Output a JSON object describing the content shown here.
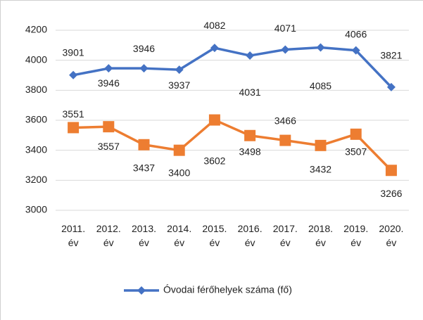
{
  "chart_data": {
    "type": "line",
    "categories": [
      "2011. év",
      "2012. év",
      "2013. év",
      "2014. év",
      "2015. év",
      "2016. év",
      "2017. év",
      "2018. év",
      "2019. év",
      "2020. év"
    ],
    "series": [
      {
        "name": "Óvodai férőhelyek száma (fő)",
        "color": "#4472c4",
        "marker": "diamond",
        "values": [
          3901,
          3946,
          3946,
          3937,
          4082,
          4031,
          4071,
          4085,
          4066,
          3821
        ]
      },
      {
        "color": "#ed7d31",
        "marker": "square",
        "values": [
          3551,
          3557,
          3437,
          3400,
          3602,
          3498,
          3466,
          3432,
          3507,
          3266
        ]
      }
    ],
    "ylim": [
      3000,
      4200
    ],
    "yticks": [
      3000,
      3200,
      3400,
      3600,
      3800,
      4000,
      4200
    ],
    "grid": true,
    "legend": "bottom"
  }
}
